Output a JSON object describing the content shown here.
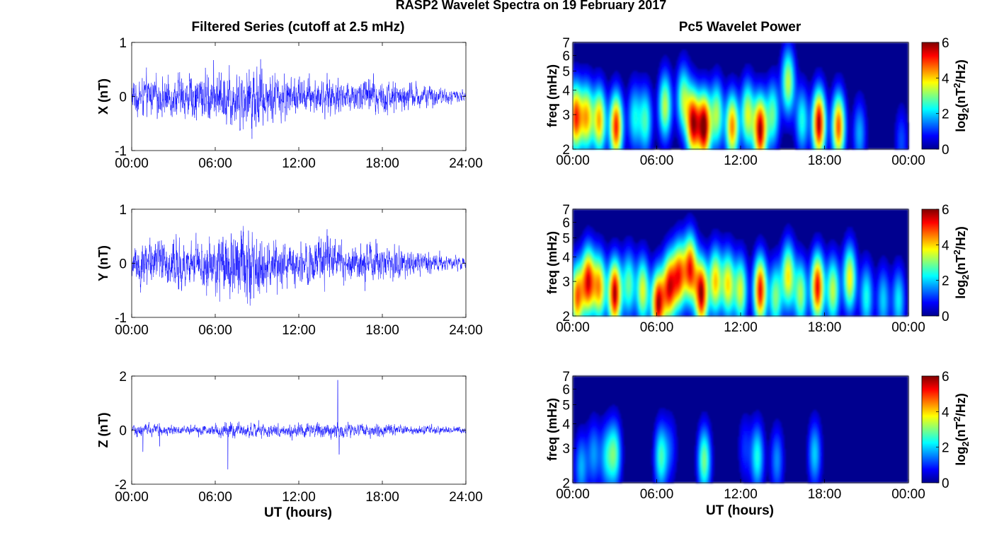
{
  "figure": {
    "suptitle": "RASP2 Wavelet Spectra on 19 February 2017",
    "left_column_title": "Filtered Series (cutoff at 2.5 mHz)",
    "right_column_title": "Pc5 Wavelet Power",
    "x_axis_label": "UT (hours)",
    "colorbar_label_prefix": "log",
    "colorbar_label_subscript": "2",
    "colorbar_label_suffix": "(nT",
    "colorbar_label_sup": "2",
    "colorbar_label_end": "/Hz)"
  },
  "colors": {
    "trace": "#0000ff",
    "background_power": "#00008f",
    "axes": "#000000"
  },
  "chart_data": [
    {
      "type": "line",
      "panel": "X",
      "ylabel": "X (nT)",
      "ylim": [
        -1,
        1
      ],
      "yticks": [
        "-1",
        "0",
        "1"
      ],
      "xlim": [
        0,
        24
      ],
      "xticks": [
        "00:00",
        "06:00",
        "12:00",
        "18:00",
        "24:00"
      ],
      "envelope": {
        "hours": [
          0,
          1,
          2,
          3,
          4,
          5,
          6,
          7,
          8,
          9,
          10,
          11,
          12,
          13,
          14,
          15,
          16,
          17,
          18,
          19,
          20,
          21,
          22,
          23,
          24
        ],
        "amplitude_nT": [
          0.35,
          0.45,
          0.4,
          0.42,
          0.5,
          0.55,
          0.6,
          0.62,
          0.7,
          0.75,
          0.55,
          0.5,
          0.45,
          0.4,
          0.45,
          0.4,
          0.35,
          0.45,
          0.4,
          0.35,
          0.3,
          0.25,
          0.2,
          0.15,
          0.12
        ]
      }
    },
    {
      "type": "line",
      "panel": "Y",
      "ylabel": "Y (nT)",
      "ylim": [
        -1,
        1
      ],
      "yticks": [
        "-1",
        "0",
        "1"
      ],
      "xlim": [
        0,
        24
      ],
      "xticks": [
        "00:00",
        "06:00",
        "12:00",
        "18:00",
        "24:00"
      ],
      "envelope": {
        "hours": [
          0,
          1,
          2,
          3,
          4,
          5,
          6,
          7,
          8,
          9,
          10,
          11,
          12,
          13,
          14,
          15,
          16,
          17,
          18,
          19,
          20,
          21,
          22,
          23,
          24
        ],
        "amplitude_nT": [
          0.45,
          0.55,
          0.55,
          0.6,
          0.45,
          0.5,
          0.7,
          0.8,
          0.85,
          0.75,
          0.55,
          0.5,
          0.45,
          0.5,
          0.55,
          0.45,
          0.4,
          0.55,
          0.4,
          0.35,
          0.3,
          0.25,
          0.2,
          0.15,
          0.15
        ]
      }
    },
    {
      "type": "line",
      "panel": "Z",
      "ylabel": "Z (nT)",
      "ylim": [
        -2,
        2
      ],
      "yticks": [
        "-2",
        "0",
        "2"
      ],
      "xlim": [
        0,
        24
      ],
      "xticks": [
        "00:00",
        "06:00",
        "12:00",
        "18:00",
        "24:00"
      ],
      "envelope": {
        "hours": [
          0,
          1,
          2,
          3,
          4,
          5,
          6,
          7,
          8,
          9,
          10,
          11,
          12,
          13,
          14,
          15,
          16,
          17,
          18,
          19,
          20,
          21,
          22,
          23,
          24
        ],
        "amplitude_nT": [
          0.25,
          0.3,
          0.25,
          0.2,
          0.2,
          0.25,
          0.3,
          0.35,
          0.3,
          0.3,
          0.3,
          0.3,
          0.3,
          0.35,
          0.35,
          0.35,
          0.3,
          0.3,
          0.25,
          0.25,
          0.2,
          0.2,
          0.2,
          0.15,
          0.15
        ]
      },
      "spikes": [
        {
          "hour": 0.8,
          "value": -0.8
        },
        {
          "hour": 2.0,
          "value": -0.6
        },
        {
          "hour": 6.9,
          "value": -1.45
        },
        {
          "hour": 14.8,
          "value": 1.85
        },
        {
          "hour": 14.9,
          "value": -0.9
        }
      ]
    },
    {
      "type": "heatmap",
      "panel": "X",
      "ylabel": "freq (mHz)",
      "yscale": "log",
      "ylim": [
        2,
        7
      ],
      "yticks": [
        "2",
        "3",
        "4",
        "5",
        "6",
        "7"
      ],
      "xlim": [
        0,
        24
      ],
      "xticks": [
        "00:00",
        "06:00",
        "12:00",
        "18:00",
        "00:00"
      ],
      "colorbar": {
        "range": [
          0,
          6
        ],
        "ticks": [
          "0",
          "2",
          "4",
          "6"
        ],
        "colormap": "jet"
      },
      "blobs": [
        {
          "t": 0.2,
          "f": 2.9,
          "amp": 5.0
        },
        {
          "t": 1.0,
          "f": 2.9,
          "amp": 4.0
        },
        {
          "t": 1.9,
          "f": 2.8,
          "amp": 4.2
        },
        {
          "t": 3.1,
          "f": 2.6,
          "amp": 5.2
        },
        {
          "t": 4.4,
          "f": 2.9,
          "amp": 2.2
        },
        {
          "t": 5.2,
          "f": 2.8,
          "amp": 2.6
        },
        {
          "t": 6.6,
          "f": 3.3,
          "amp": 3.4
        },
        {
          "t": 7.9,
          "f": 3.6,
          "amp": 3.0
        },
        {
          "t": 8.6,
          "f": 2.7,
          "amp": 5.5
        },
        {
          "t": 9.4,
          "f": 2.6,
          "amp": 6.0
        },
        {
          "t": 10.3,
          "f": 3.0,
          "amp": 3.2
        },
        {
          "t": 11.4,
          "f": 2.6,
          "amp": 4.5
        },
        {
          "t": 12.5,
          "f": 3.0,
          "amp": 3.5
        },
        {
          "t": 13.4,
          "f": 2.5,
          "amp": 5.8
        },
        {
          "t": 14.3,
          "f": 3.0,
          "amp": 2.8
        },
        {
          "t": 15.4,
          "f": 4.4,
          "amp": 3.4
        },
        {
          "t": 16.4,
          "f": 2.8,
          "amp": 2.4
        },
        {
          "t": 17.6,
          "f": 2.7,
          "amp": 5.8
        },
        {
          "t": 19.0,
          "f": 2.6,
          "amp": 4.8
        },
        {
          "t": 20.5,
          "f": 2.4,
          "amp": 1.8
        },
        {
          "t": 23.5,
          "f": 2.2,
          "amp": 1.2
        }
      ]
    },
    {
      "type": "heatmap",
      "panel": "Y",
      "ylabel": "freq (mHz)",
      "yscale": "log",
      "ylim": [
        2,
        7
      ],
      "yticks": [
        "2",
        "3",
        "4",
        "5",
        "6",
        "7"
      ],
      "xlim": [
        0,
        24
      ],
      "xticks": [
        "00:00",
        "06:00",
        "12:00",
        "18:00",
        "00:00"
      ],
      "colorbar": {
        "range": [
          0,
          6
        ],
        "ticks": [
          "0",
          "2",
          "4",
          "6"
        ],
        "colormap": "jet"
      },
      "blobs": [
        {
          "t": 0.3,
          "f": 2.5,
          "amp": 4.6
        },
        {
          "t": 1.1,
          "f": 3.0,
          "amp": 5.2
        },
        {
          "t": 1.9,
          "f": 2.8,
          "amp": 4.2
        },
        {
          "t": 3.0,
          "f": 2.6,
          "amp": 5.8
        },
        {
          "t": 4.0,
          "f": 2.9,
          "amp": 2.8
        },
        {
          "t": 5.0,
          "f": 2.7,
          "amp": 3.6
        },
        {
          "t": 6.1,
          "f": 2.3,
          "amp": 5.6
        },
        {
          "t": 6.9,
          "f": 2.8,
          "amp": 5.0
        },
        {
          "t": 7.6,
          "f": 3.2,
          "amp": 4.6
        },
        {
          "t": 8.4,
          "f": 3.5,
          "amp": 5.0
        },
        {
          "t": 9.2,
          "f": 2.6,
          "amp": 5.8
        },
        {
          "t": 10.2,
          "f": 3.0,
          "amp": 4.0
        },
        {
          "t": 11.1,
          "f": 2.9,
          "amp": 3.8
        },
        {
          "t": 12.0,
          "f": 2.7,
          "amp": 3.5
        },
        {
          "t": 13.4,
          "f": 2.7,
          "amp": 5.4
        },
        {
          "t": 14.5,
          "f": 2.5,
          "amp": 3.0
        },
        {
          "t": 15.4,
          "f": 3.2,
          "amp": 3.8
        },
        {
          "t": 16.3,
          "f": 2.6,
          "amp": 3.2
        },
        {
          "t": 17.5,
          "f": 2.8,
          "amp": 5.4
        },
        {
          "t": 18.6,
          "f": 2.7,
          "amp": 3.4
        },
        {
          "t": 19.8,
          "f": 3.1,
          "amp": 3.8
        },
        {
          "t": 21.0,
          "f": 2.5,
          "amp": 2.4
        },
        {
          "t": 22.2,
          "f": 2.4,
          "amp": 2.0
        },
        {
          "t": 23.3,
          "f": 2.4,
          "amp": 2.2
        }
      ]
    },
    {
      "type": "heatmap",
      "panel": "Z",
      "ylabel": "freq (mHz)",
      "yscale": "log",
      "ylim": [
        2,
        7
      ],
      "yticks": [
        "2",
        "3",
        "4",
        "5",
        "6",
        "7"
      ],
      "xlim": [
        0,
        24
      ],
      "xticks": [
        "00:00",
        "06:00",
        "12:00",
        "18:00",
        "00:00"
      ],
      "colorbar": {
        "range": [
          0,
          6
        ],
        "ticks": [
          "0",
          "2",
          "4",
          "6"
        ],
        "colormap": "jet"
      },
      "blobs": [
        {
          "t": 0.6,
          "f": 2.4,
          "amp": 1.8
        },
        {
          "t": 1.5,
          "f": 2.8,
          "amp": 1.6
        },
        {
          "t": 2.4,
          "f": 2.7,
          "amp": 1.8
        },
        {
          "t": 3.0,
          "f": 2.8,
          "amp": 2.6
        },
        {
          "t": 6.3,
          "f": 2.7,
          "amp": 2.6
        },
        {
          "t": 7.0,
          "f": 3.0,
          "amp": 1.0
        },
        {
          "t": 9.4,
          "f": 2.6,
          "amp": 3.0
        },
        {
          "t": 12.3,
          "f": 3.0,
          "amp": 1.0
        },
        {
          "t": 13.2,
          "f": 2.7,
          "amp": 2.4
        },
        {
          "t": 14.6,
          "f": 2.6,
          "amp": 1.6
        },
        {
          "t": 17.3,
          "f": 2.8,
          "amp": 2.0
        }
      ]
    }
  ]
}
